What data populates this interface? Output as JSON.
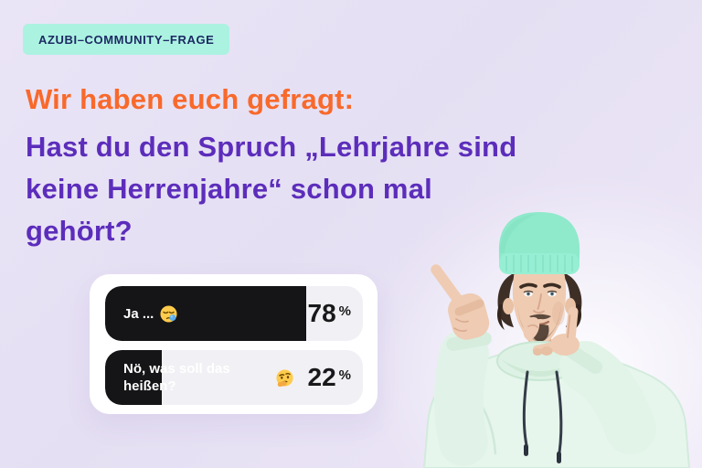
{
  "badge": {
    "label": "AZUBI–COMMUNITY–FRAGE",
    "bg": "#ACF2E1",
    "color": "#1D2A63"
  },
  "headline": {
    "intro": "Wir haben euch gefragt:",
    "intro_color": "#F8692B",
    "question_lines": [
      "Hast du den Spruch „Lehrjahre sind",
      "keine Herrenjahre“ schon mal",
      "gehört?"
    ],
    "question_color": "#5C2DBB"
  },
  "poll": {
    "unit": "%",
    "track_color": "#F1F0F4",
    "bar_fill_color": "#151517",
    "options": [
      {
        "label": "Ja ...",
        "emoji": "😪",
        "emoji_name": "sleepy-face",
        "value": 78,
        "value_label": "78"
      },
      {
        "label": "Nö, was soll das heißen?",
        "emoji": "🤔",
        "emoji_name": "thinking-face",
        "value": 22,
        "value_label": "22"
      }
    ]
  },
  "illustration": {
    "beanie_color": "#8FE9CB",
    "hoodie_color": "#E6F6EC",
    "skin_color": "#EFCBB1",
    "hair_color": "#3E2F26"
  },
  "chart_data": {
    "type": "bar",
    "orientation": "horizontal",
    "title": "Hast du den Spruch „Lehrjahre sind keine Herrenjahre“ schon mal gehört?",
    "categories": [
      "Ja ... 😪",
      "Nö, was soll das heißen? 🤔"
    ],
    "values": [
      78,
      22
    ],
    "unit": "%",
    "xlim": [
      0,
      100
    ],
    "legend": false,
    "grid": false
  }
}
